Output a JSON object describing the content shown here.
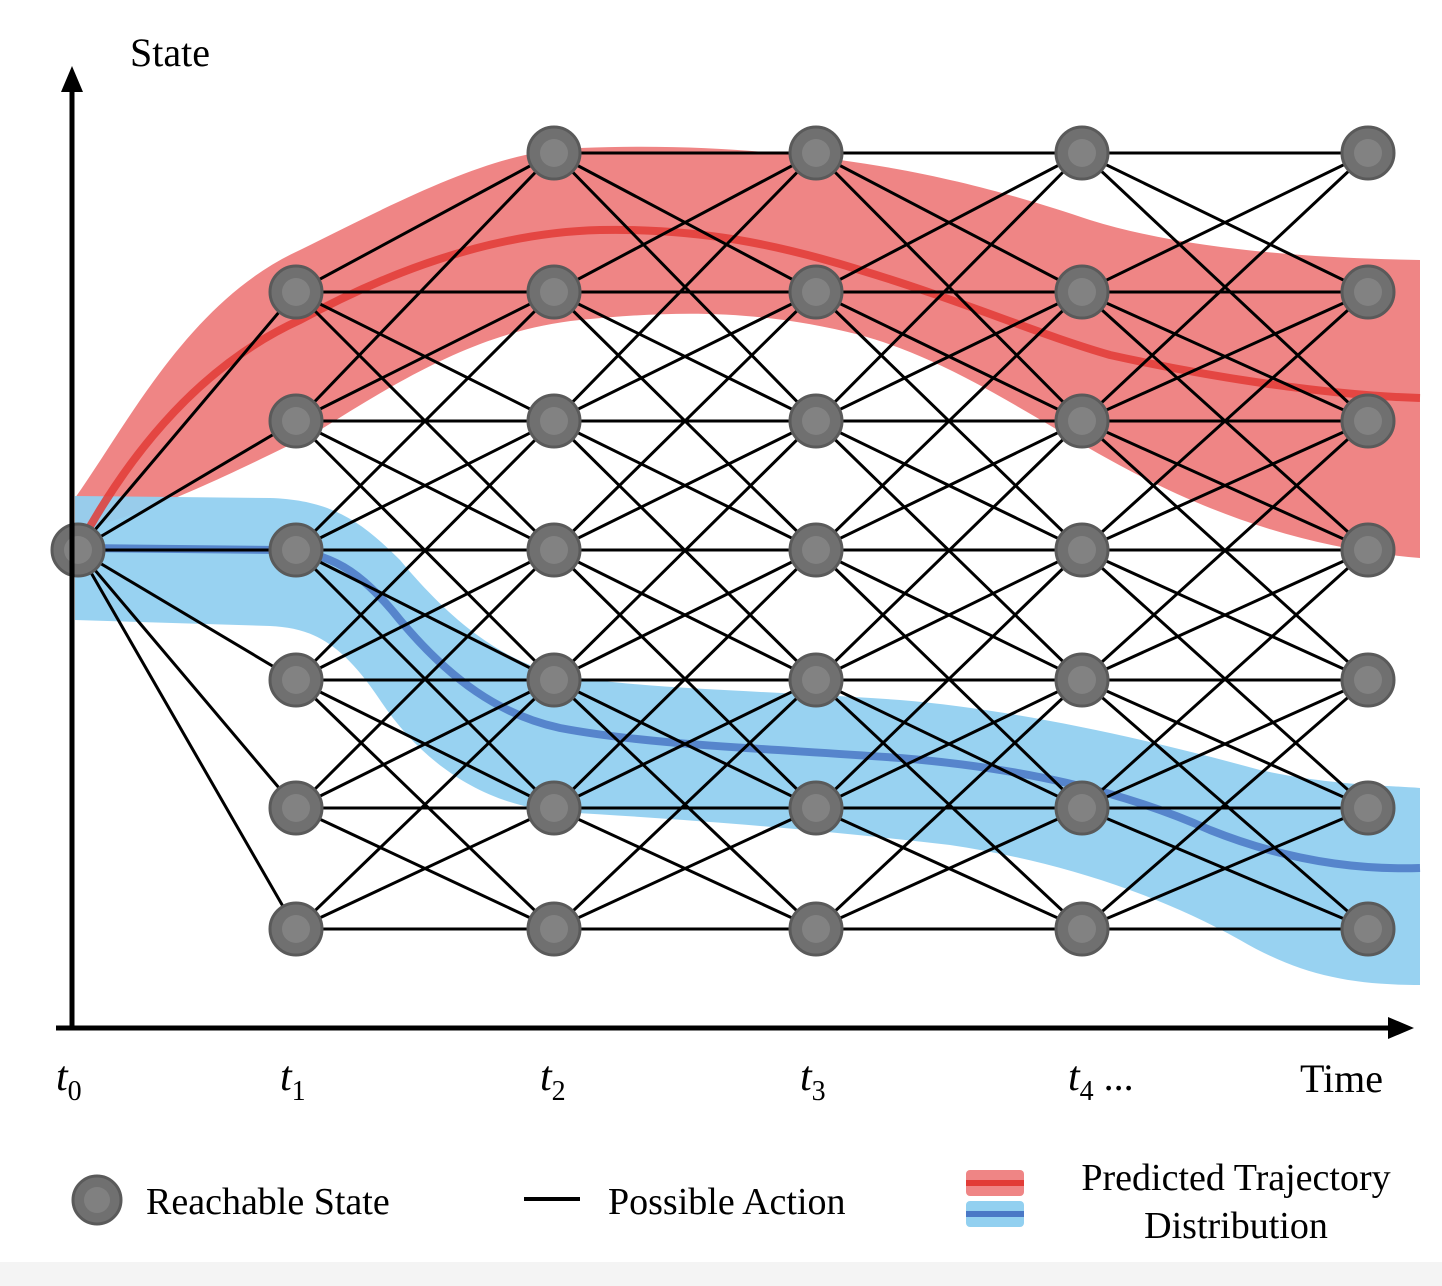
{
  "axes": {
    "y_label": "State",
    "x_label": "Time",
    "ticks": [
      {
        "base": "t",
        "sub": "0",
        "suffix": ""
      },
      {
        "base": "t",
        "sub": "1",
        "suffix": ""
      },
      {
        "base": "t",
        "sub": "2",
        "suffix": ""
      },
      {
        "base": "t",
        "sub": "3",
        "suffix": ""
      },
      {
        "base": "t",
        "sub": "4",
        "suffix": " ..."
      }
    ]
  },
  "lattice": {
    "node_counts_per_stage": [
      1,
      6,
      7,
      7,
      7,
      7
    ],
    "node_levels": [
      [
        3
      ],
      [
        1,
        2,
        3,
        4,
        5,
        6
      ],
      [
        0,
        1,
        2,
        3,
        4,
        5,
        6
      ],
      [
        0,
        1,
        2,
        3,
        4,
        5,
        6
      ],
      [
        0,
        1,
        2,
        3,
        4,
        5,
        6
      ],
      [
        0,
        1,
        2,
        3,
        4,
        5,
        6
      ]
    ],
    "max_level_jump": 2
  },
  "trajectories": [
    {
      "color": "#e23b36",
      "band_color": "#ef8585",
      "direction": "up"
    },
    {
      "color": "#4a78c6",
      "band_color": "#92d0f0",
      "direction": "down"
    }
  ],
  "colors": {
    "node_fill": "#707070",
    "node_stroke": "#5a5a5a",
    "edge": "#000000"
  },
  "legend": {
    "reachable_state": "Reachable State",
    "possible_action": "Possible Action",
    "trajectory_line1": "Predicted Trajectory",
    "trajectory_line2": "Distribution"
  }
}
